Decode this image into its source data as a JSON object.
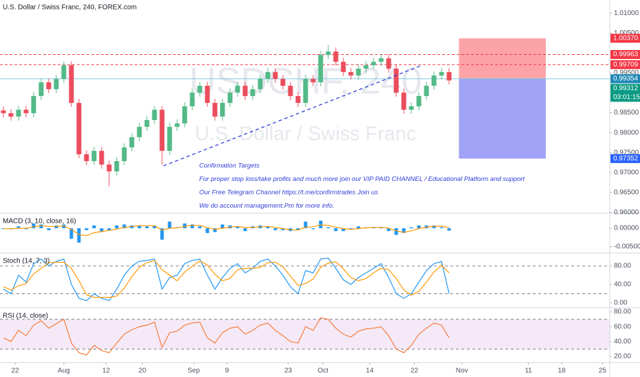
{
  "chart_data": [
    {
      "type": "candlestick",
      "title": "U.S. Dollar / Swiss Franc, 240, FOREX.com",
      "watermark": [
        "USDCHF, 240",
        "U.S. Dollar / Swiss Franc"
      ],
      "annotations": [
        "Confirmation Targets",
        "For proper stop loss/take profits and much more join our VIP PAID CHANNEL / Educational Platform and support",
        "Our Free Telegram Channel https://t.me/confirmtrades Join us",
        "We do account management.Pm for more info."
      ],
      "up_color": "#53b987",
      "down_color": "#eb4d5c",
      "open": [
        0.9856,
        0.98491,
        0.98405,
        0.98577,
        0.98491,
        0.98921,
        0.99265,
        0.99093,
        0.9935,
        0.99694,
        0.98749,
        0.9746,
        0.97289,
        0.97546,
        0.97203,
        0.97031,
        0.97289,
        0.97632,
        0.9789,
        0.98148,
        0.9832,
        0.98577,
        0.97546,
        0.98148,
        0.98234,
        0.98663,
        0.99007,
        0.99179,
        0.98749,
        0.98405,
        0.98749,
        0.99007,
        0.99179,
        0.98921,
        0.99093,
        0.9935,
        0.99522,
        0.9935,
        0.99179,
        0.98921,
        0.98749,
        0.9935,
        0.99265,
        0.99952,
        1.00038,
        0.9978,
        0.99522,
        0.99436,
        0.99608,
        0.99694,
        0.9978,
        0.99866,
        0.99608,
        0.99007,
        0.98577,
        0.98663,
        0.98921,
        0.99179,
        0.99436,
        0.99522
      ],
      "high": [
        0.9866,
        0.98591,
        0.98677,
        0.98677,
        0.99021,
        0.99365,
        0.99365,
        0.9945,
        0.99794,
        0.99794,
        0.98849,
        0.9756,
        0.97646,
        0.97646,
        0.97303,
        0.97389,
        0.97732,
        0.9799,
        0.98248,
        0.9842,
        0.98677,
        0.98677,
        0.98248,
        0.98334,
        0.98763,
        0.99107,
        0.99279,
        0.99279,
        0.98849,
        0.98849,
        0.99107,
        0.99279,
        0.99279,
        0.99193,
        0.9945,
        0.99622,
        0.99622,
        0.9945,
        0.99279,
        0.99021,
        0.9945,
        0.9945,
        1.00052,
        1.002,
        1.00138,
        0.9988,
        0.99622,
        0.99708,
        0.99794,
        0.9988,
        0.99966,
        0.99966,
        0.99708,
        0.99107,
        0.98763,
        0.99021,
        0.99279,
        0.99536,
        0.99622,
        0.99622
      ],
      "low": [
        0.98391,
        0.98305,
        0.98305,
        0.98391,
        0.98391,
        0.98821,
        0.98993,
        0.98993,
        0.9925,
        0.98649,
        0.9736,
        0.97189,
        0.97189,
        0.97103,
        0.9665,
        0.96931,
        0.97189,
        0.97532,
        0.9779,
        0.98048,
        0.9822,
        0.972,
        0.97446,
        0.98048,
        0.98134,
        0.98563,
        0.98907,
        0.98649,
        0.98305,
        0.98305,
        0.98649,
        0.98907,
        0.98821,
        0.98821,
        0.98993,
        0.9925,
        0.9925,
        0.99079,
        0.98821,
        0.98649,
        0.98649,
        0.99165,
        0.99165,
        0.99852,
        0.9968,
        0.99422,
        0.99336,
        0.99336,
        0.99508,
        0.99594,
        0.9968,
        0.99508,
        0.98907,
        0.98477,
        0.98477,
        0.98563,
        0.98821,
        0.99079,
        0.99336,
        0.99212
      ],
      "close": [
        0.98491,
        0.98405,
        0.98577,
        0.98491,
        0.98921,
        0.99265,
        0.99093,
        0.9935,
        0.99694,
        0.98749,
        0.9746,
        0.97289,
        0.97546,
        0.97203,
        0.97031,
        0.97289,
        0.97632,
        0.9789,
        0.98148,
        0.9832,
        0.98577,
        0.97546,
        0.98148,
        0.98234,
        0.98663,
        0.99007,
        0.99179,
        0.98749,
        0.98405,
        0.98749,
        0.99007,
        0.99179,
        0.98921,
        0.99093,
        0.9935,
        0.99522,
        0.9935,
        0.99179,
        0.98921,
        0.98749,
        0.9935,
        0.99265,
        0.99952,
        1.00038,
        0.9978,
        0.99522,
        0.99436,
        0.99608,
        0.99694,
        0.9978,
        0.99866,
        0.99608,
        0.99007,
        0.98577,
        0.98663,
        0.98921,
        0.99179,
        0.99436,
        0.99522,
        0.99312
      ],
      "ylim": [
        0.96,
        1.0133
      ],
      "yticks": [
        {
          "value": 1.01,
          "label": "1.01000"
        },
        {
          "value": 1.005,
          "label": "1.00500"
        },
        {
          "value": 0.995,
          "label": "0.99500"
        },
        {
          "value": 0.985,
          "label": "0.98500"
        },
        {
          "value": 0.98,
          "label": "0.98000"
        },
        {
          "value": 0.975,
          "label": "0.97500"
        },
        {
          "value": 0.97,
          "label": "0.97000"
        },
        {
          "value": 0.965,
          "label": "0.96500"
        },
        {
          "value": 0.96,
          "label": "0.96000"
        }
      ],
      "xlim": [
        -0.45,
        80.27
      ],
      "xticks": [
        {
          "value": 1.55,
          "label": "22"
        },
        {
          "value": 8,
          "label": "Aug"
        },
        {
          "value": 13.6,
          "label": "12"
        },
        {
          "value": 18.4,
          "label": "20"
        },
        {
          "value": 25.2,
          "label": "Sep"
        },
        {
          "value": 29.6,
          "label": "9"
        },
        {
          "value": 37.7,
          "label": "23"
        },
        {
          "value": 42.3,
          "label": "Oct"
        },
        {
          "value": 48.5,
          "label": "14"
        },
        {
          "value": 54.4,
          "label": "22"
        },
        {
          "value": 60.7,
          "label": "Nov"
        },
        {
          "value": 69.5,
          "label": "11"
        },
        {
          "value": 73.9,
          "label": "18"
        },
        {
          "value": 79.3,
          "label": "25"
        }
      ],
      "price_tags": [
        {
          "value": 1.0037,
          "label": "1.00370",
          "color": "#f23645"
        },
        {
          "value": 0.99963,
          "label": "0.99963",
          "color": "#f23645",
          "line": "dashed"
        },
        {
          "value": 0.99709,
          "label": "0.99709",
          "color": "#f23645",
          "line": "dashed"
        },
        {
          "value": 0.99354,
          "label": "0.99354",
          "color": "#1e88b5",
          "line": "solid"
        },
        {
          "value": 0.99312,
          "label": "0.99312",
          "color": "#089981",
          "countdown": "03:01:15"
        },
        {
          "value": 0.97352,
          "label": "0.97352",
          "color": "#2962ff"
        }
      ],
      "position": {
        "target": 1.0037,
        "entry": 0.99354,
        "stop": 0.97352,
        "x": [
          60.3,
          71.8
        ],
        "target_color": "#fca3a8",
        "stop_color": "#a0a2f6"
      }
    },
    {
      "type": "indicator",
      "title": "MACD (3, 10, close, 16)",
      "ylim": [
        -0.00648,
        0.00389
      ],
      "yticks": [
        {
          "value": 0,
          "label": "0.00000"
        },
        {
          "value": -0.005,
          "label": "-0.00500"
        }
      ],
      "series": [
        {
          "name": "Histogram",
          "style": "bar",
          "color": "#2196f3",
          "values": [
            -0.00021,
            -0.00026,
            0.00052,
            -0.00026,
            0.00129,
            0.00103,
            -0.00052,
            0.00077,
            0.00103,
            -0.00284,
            -0.00387,
            -0.00051,
            0.00077,
            -0.00103,
            -0.00052,
            0.00077,
            0.00103,
            0.00077,
            0.00077,
            0.00052,
            0.00077,
            -0.00309,
            0.00181,
            0.00026,
            0.00129,
            0.00103,
            0.00052,
            -0.00129,
            -0.00103,
            0.00103,
            0.00077,
            0.00052,
            -0.00077,
            0.00052,
            0.00077,
            0.00052,
            -0.00052,
            -0.00051,
            -0.00077,
            -0.00052,
            0.0018,
            -0.00026,
            0.00206,
            0.00026,
            -0.00077,
            -0.00077,
            -0.00026,
            0.00052,
            0.00026,
            0.00026,
            0.00026,
            -0.00077,
            -0.0018,
            -0.00129,
            0.00026,
            0.00077,
            0.00077,
            0.00077,
            0.00026,
            -0.00063
          ]
        },
        {
          "name": "Signal",
          "style": "line",
          "color": "#ff9800",
          "values": [
            -0.0001,
            -0.00015,
            0,
            0,
            0.0004,
            0.0007,
            0.0005,
            0.0005,
            0.00065,
            -0.0003,
            -0.0017,
            -0.002,
            -0.0012,
            -0.0009,
            -0.0006,
            -0.0002,
            0.0002,
            0.0005,
            0.0007,
            0.0007,
            0.0007,
            -0.0005,
            0,
            0.0001,
            0.0005,
            0.0008,
            0.0008,
            0.0002,
            -0.0003,
            0,
            0.0003,
            0.0005,
            0.0002,
            0.0002,
            0.0004,
            0.0005,
            0.0002,
            -0.0001,
            -0.0004,
            -0.0005,
            0.0003,
            0.0004,
            0.0009,
            0.0008,
            0.0003,
            -0.0001,
            -0.0003,
            -0.0001,
            0.0001,
            0.0002,
            0.00025,
            0,
            -0.0007,
            -0.0011,
            -0.0007,
            -0.0001,
            0.0003,
            0.00055,
            0.00055,
            0.0002
          ]
        }
      ]
    },
    {
      "type": "indicator",
      "title": "Stoch (14, 7, 3)",
      "ylim": [
        -8.9,
        106.7
      ],
      "yticks": [
        {
          "value": 80,
          "label": "80.00"
        },
        {
          "value": 40,
          "label": "40.00"
        },
        {
          "value": 0,
          "label": "0.00"
        }
      ],
      "levels": [
        80,
        20
      ],
      "series": [
        {
          "name": "%K",
          "style": "line",
          "color": "#2196f3",
          "values": [
            30,
            20,
            60,
            45,
            85,
            95,
            80,
            90,
            95,
            40,
            10,
            5,
            20,
            10,
            5,
            30,
            60,
            80,
            90,
            92,
            95,
            30,
            55,
            60,
            85,
            92,
            95,
            60,
            30,
            55,
            75,
            85,
            65,
            75,
            90,
            95,
            80,
            60,
            35,
            20,
            70,
            65,
            95,
            97,
            75,
            50,
            40,
            55,
            65,
            75,
            85,
            55,
            20,
            10,
            20,
            45,
            70,
            85,
            90,
            20
          ]
        },
        {
          "name": "%D",
          "style": "line",
          "color": "#ff9800",
          "values": [
            35,
            28,
            37,
            42,
            63,
            75,
            87,
            88,
            88,
            75,
            48,
            18,
            12,
            12,
            12,
            15,
            32,
            57,
            77,
            87,
            92,
            72,
            60,
            48,
            67,
            79,
            91,
            82,
            62,
            48,
            53,
            72,
            75,
            75,
            77,
            87,
            88,
            78,
            58,
            38,
            42,
            52,
            77,
            86,
            89,
            74,
            55,
            48,
            53,
            65,
            75,
            72,
            53,
            28,
            17,
            25,
            45,
            67,
            82,
            65
          ]
        }
      ]
    },
    {
      "type": "indicator",
      "title": "RSI (14, close)",
      "ylim": [
        12.7,
        84.5
      ],
      "yticks": [
        {
          "value": 80,
          "label": "80.00"
        },
        {
          "value": 60,
          "label": "60.00"
        },
        {
          "value": 40,
          "label": "40.00"
        },
        {
          "value": 20,
          "label": "20.00"
        }
      ],
      "levels": [
        70,
        30
      ],
      "band": [
        30,
        70
      ],
      "band_color": "#9c27b0",
      "series": [
        {
          "name": "RSI",
          "style": "line",
          "color": "#f57c3a",
          "values": [
            45,
            40,
            55,
            48,
            62,
            68,
            58,
            64,
            70,
            38,
            25,
            22,
            35,
            28,
            25,
            38,
            50,
            56,
            60,
            62,
            66,
            32,
            52,
            54,
            62,
            65,
            66,
            45,
            38,
            52,
            58,
            60,
            50,
            55,
            62,
            65,
            55,
            48,
            40,
            38,
            60,
            55,
            72,
            70,
            58,
            50,
            46,
            54,
            57,
            58,
            60,
            48,
            30,
            25,
            35,
            50,
            58,
            65,
            62,
            45
          ]
        }
      ]
    }
  ]
}
